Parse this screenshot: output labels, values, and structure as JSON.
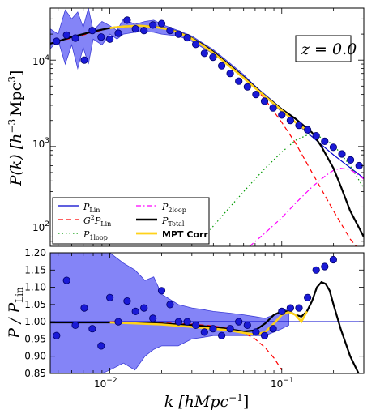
{
  "chart_data": [
    {
      "type": "line",
      "panel": "top",
      "xscale": "log",
      "yscale": "log",
      "xlim": [
        0.0045,
        0.3
      ],
      "ylim": [
        70,
        40000
      ],
      "ylabel": "P(k) [h^-3 Mpc^3]",
      "y_ticks": [
        {
          "v": 100,
          "label": "10^2"
        },
        {
          "v": 1000,
          "label": "10^3"
        },
        {
          "v": 10000,
          "label": "10^4"
        }
      ],
      "annotation": "z = 0.0",
      "legend_position": "lower-left",
      "series": [
        {
          "name": "P_Lin",
          "color": "#0000cc",
          "style": "solid",
          "x": [
            0.0045,
            0.006,
            0.008,
            0.01,
            0.012,
            0.015,
            0.018,
            0.022,
            0.026,
            0.03,
            0.035,
            0.04,
            0.05,
            0.06,
            0.07,
            0.08,
            0.1,
            0.12,
            0.15,
            0.2,
            0.3
          ],
          "y": [
            15500,
            18500,
            21500,
            23500,
            24500,
            25000,
            24500,
            23000,
            20500,
            18000,
            15000,
            12500,
            8800,
            6500,
            5000,
            3900,
            2600,
            1900,
            1300,
            800,
            430
          ]
        },
        {
          "name": "G^2 P_Lin",
          "color": "#ff0000",
          "style": "dashed",
          "x": [
            0.0045,
            0.01,
            0.015,
            0.02,
            0.03,
            0.04,
            0.05,
            0.06,
            0.07,
            0.08,
            0.1,
            0.12,
            0.15,
            0.2,
            0.25,
            0.3
          ],
          "y": [
            15500,
            23500,
            25000,
            24000,
            18000,
            12500,
            8700,
            6400,
            4800,
            3500,
            1900,
            1100,
            500,
            180,
            85,
            55
          ]
        },
        {
          "name": "P_1loop",
          "color": "#009900",
          "style": "dotted",
          "x": [
            0.034,
            0.04,
            0.05,
            0.06,
            0.07,
            0.08,
            0.1,
            0.12,
            0.14,
            0.16,
            0.2,
            0.25,
            0.3
          ],
          "y": [
            80,
            120,
            200,
            300,
            420,
            560,
            860,
            1180,
            1350,
            1350,
            1050,
            600,
            330
          ]
        },
        {
          "name": "P_2loop",
          "color": "#ff00ff",
          "style": "dashdot",
          "x": [
            0.065,
            0.08,
            0.1,
            0.12,
            0.15,
            0.18,
            0.2,
            0.22,
            0.25,
            0.28,
            0.3
          ],
          "y": [
            70,
            100,
            150,
            220,
            340,
            460,
            530,
            560,
            540,
            470,
            420
          ]
        },
        {
          "name": "P_Total",
          "color": "#000000",
          "style": "solid",
          "x": [
            0.0045,
            0.006,
            0.008,
            0.01,
            0.012,
            0.015,
            0.018,
            0.022,
            0.026,
            0.03,
            0.035,
            0.04,
            0.05,
            0.06,
            0.07,
            0.08,
            0.1,
            0.12,
            0.15,
            0.17,
            0.2,
            0.22,
            0.25,
            0.3
          ],
          "y": [
            15500,
            18500,
            21500,
            23500,
            24500,
            25000,
            24500,
            23000,
            20500,
            18000,
            15000,
            12500,
            8700,
            6350,
            4850,
            3850,
            2700,
            2100,
            1450,
            1000,
            560,
            350,
            180,
            90
          ]
        },
        {
          "name": "MPT Corr",
          "color": "#ffd21a",
          "style": "solid",
          "x": [
            0.01,
            0.012,
            0.015,
            0.018,
            0.022,
            0.026,
            0.03,
            0.035,
            0.04,
            0.05,
            0.06,
            0.07,
            0.08,
            0.1,
            0.12,
            0.14
          ],
          "y": [
            23500,
            24500,
            25000,
            24300,
            22700,
            20200,
            17700,
            14600,
            12100,
            8400,
            6200,
            4750,
            3800,
            2620,
            1910,
            1530
          ]
        },
        {
          "name": "simulation",
          "color": "#0000cc",
          "style": "markers",
          "x": [
            0.0049,
            0.0056,
            0.0063,
            0.0071,
            0.0079,
            0.0089,
            0.01,
            0.0112,
            0.0126,
            0.0141,
            0.0158,
            0.0178,
            0.02,
            0.0224,
            0.0251,
            0.0282,
            0.0316,
            0.0355,
            0.0398,
            0.0447,
            0.0501,
            0.0562,
            0.0631,
            0.0708,
            0.0794,
            0.0891,
            0.1,
            0.1122,
            0.1259,
            0.1413,
            0.1585,
            0.1778,
            0.1995,
            0.2239,
            0.2512,
            0.2818
          ],
          "y": [
            16500,
            19500,
            18000,
            10000,
            22000,
            18500,
            17500,
            20500,
            29000,
            23000,
            22000,
            25500,
            26500,
            22000,
            20000,
            18200,
            15200,
            12000,
            10800,
            8600,
            7000,
            5700,
            4900,
            4000,
            3350,
            2800,
            2320,
            2000,
            1760,
            1560,
            1330,
            1150,
            980,
            820,
            700,
            600
          ]
        }
      ],
      "band": {
        "name": "simulation scatter",
        "color": "#6f6ff6",
        "x": [
          0.0045,
          0.005,
          0.0055,
          0.006,
          0.0065,
          0.007,
          0.0075,
          0.008,
          0.009,
          0.01,
          0.011,
          0.012,
          0.014,
          0.016,
          0.018,
          0.02,
          0.025,
          0.03,
          0.04,
          0.05,
          0.06,
          0.07,
          0.08,
          0.1
        ],
        "upper": [
          23000,
          20000,
          38000,
          30000,
          36000,
          24000,
          40000,
          22000,
          28000,
          25000,
          22000,
          30000,
          26000,
          28000,
          29000,
          26000,
          22000,
          19000,
          13200,
          9200,
          6800,
          5000,
          4000,
          2750
        ],
        "lower": [
          13500,
          17000,
          9000,
          15000,
          8000,
          14000,
          9000,
          17500,
          15000,
          20000,
          17500,
          20000,
          21000,
          21500,
          21000,
          20000,
          19000,
          16500,
          11800,
          8300,
          6200,
          4700,
          3750,
          2500
        ]
      }
    },
    {
      "type": "line",
      "panel": "bottom",
      "xscale": "log",
      "xlim": [
        0.0045,
        0.3
      ],
      "ylim": [
        0.85,
        1.2
      ],
      "xlabel": "k [h Mpc^-1]",
      "ylabel": "P / P_Lin",
      "x_ticks": [
        {
          "v": 0.01,
          "label": "10^-2"
        },
        {
          "v": 0.1,
          "label": "10^-1"
        }
      ],
      "y_ticks": [
        "0.85",
        "0.90",
        "0.95",
        "1.00",
        "1.05",
        "1.10",
        "1.15",
        "1.20"
      ],
      "series": [
        {
          "name": "P_Lin",
          "color": "#0000cc",
          "style": "solid",
          "x": [
            0.0045,
            0.3
          ],
          "y": [
            1.0,
            1.0
          ]
        },
        {
          "name": "G^2 P_Lin",
          "color": "#ff0000",
          "style": "dashed",
          "x": [
            0.01,
            0.02,
            0.03,
            0.04,
            0.05,
            0.06,
            0.07,
            0.08,
            0.09,
            0.1
          ],
          "y": [
            1.0,
            0.997,
            0.993,
            0.988,
            0.98,
            0.968,
            0.95,
            0.925,
            0.895,
            0.86
          ]
        },
        {
          "name": "P_Total",
          "color": "#000000",
          "style": "solid",
          "x": [
            0.0045,
            0.01,
            0.02,
            0.03,
            0.04,
            0.05,
            0.06,
            0.07,
            0.08,
            0.09,
            0.1,
            0.11,
            0.12,
            0.13,
            0.14,
            0.15,
            0.16,
            0.17,
            0.18,
            0.19,
            0.2,
            0.22,
            0.25,
            0.28
          ],
          "y": [
            0.998,
            0.998,
            0.995,
            0.99,
            0.985,
            0.978,
            0.972,
            0.975,
            0.995,
            1.02,
            1.03,
            1.03,
            1.02,
            1.015,
            1.03,
            1.06,
            1.1,
            1.115,
            1.11,
            1.09,
            1.05,
            0.98,
            0.9,
            0.85
          ]
        },
        {
          "name": "MPT Corr",
          "color": "#ffd21a",
          "style": "solid",
          "x": [
            0.01,
            0.02,
            0.03,
            0.04,
            0.05,
            0.06,
            0.07,
            0.08,
            0.09,
            0.1,
            0.11,
            0.12,
            0.13,
            0.14
          ],
          "y": [
            0.998,
            0.992,
            0.985,
            0.98,
            0.975,
            0.968,
            0.963,
            0.97,
            0.995,
            1.02,
            1.028,
            1.02,
            1.0,
            1.03
          ]
        },
        {
          "name": "simulation",
          "color": "#0000cc",
          "style": "markers",
          "x": [
            0.0049,
            0.0056,
            0.0063,
            0.0071,
            0.0079,
            0.0089,
            0.01,
            0.0112,
            0.0126,
            0.0141,
            0.0158,
            0.0178,
            0.02,
            0.0224,
            0.0251,
            0.0282,
            0.0316,
            0.0355,
            0.0398,
            0.0447,
            0.0501,
            0.0562,
            0.0631,
            0.0708,
            0.0794,
            0.0891,
            0.1,
            0.1122,
            0.1259,
            0.1413,
            0.1585,
            0.1778,
            0.1995
          ],
          "y": [
            0.96,
            1.12,
            0.99,
            1.04,
            0.98,
            0.93,
            1.07,
            1.0,
            1.06,
            1.03,
            1.04,
            1.01,
            1.09,
            1.05,
            1.0,
            1.0,
            0.99,
            0.97,
            0.98,
            0.96,
            0.98,
            1.0,
            0.99,
            0.97,
            0.96,
            0.98,
            1.03,
            1.04,
            1.04,
            1.07,
            1.15,
            1.16,
            1.18
          ]
        }
      ],
      "band": {
        "name": "simulation scatter",
        "color": "#6f6ff6",
        "x": [
          0.0045,
          0.005,
          0.0055,
          0.006,
          0.007,
          0.008,
          0.009,
          0.01,
          0.012,
          0.014,
          0.016,
          0.018,
          0.02,
          0.025,
          0.03,
          0.035,
          0.04,
          0.05,
          0.06,
          0.07,
          0.08,
          0.09,
          0.1,
          0.11
        ],
        "upper": [
          1.2,
          1.2,
          1.2,
          1.2,
          1.2,
          1.2,
          1.2,
          1.2,
          1.17,
          1.15,
          1.12,
          1.13,
          1.08,
          1.05,
          1.04,
          1.035,
          1.03,
          1.025,
          1.02,
          1.015,
          1.01,
          1.02,
          1.03,
          1.04
        ],
        "lower": [
          0.85,
          0.85,
          0.85,
          0.85,
          0.85,
          0.85,
          0.85,
          0.86,
          0.88,
          0.86,
          0.9,
          0.92,
          0.93,
          0.93,
          0.95,
          0.955,
          0.96,
          0.96,
          0.96,
          0.96,
          0.96,
          0.97,
          0.98,
          0.99
        ]
      }
    }
  ],
  "legend": {
    "entries": [
      {
        "label": "P_Lin",
        "color": "#0000cc",
        "style": "solid",
        "col": 0,
        "row": 0
      },
      {
        "label": "G^2 P_Lin",
        "color": "#ff0000",
        "style": "dashed",
        "col": 0,
        "row": 1
      },
      {
        "label": "P_1loop",
        "color": "#009900",
        "style": "dotted",
        "col": 0,
        "row": 2
      },
      {
        "label": "P_2loop",
        "color": "#ff00ff",
        "style": "dashdot",
        "col": 1,
        "row": 0
      },
      {
        "label": "P_Total",
        "color": "#000000",
        "style": "solid",
        "col": 1,
        "row": 1
      },
      {
        "label": "MPT Corr",
        "color": "#ffd21a",
        "style": "solid",
        "col": 1,
        "row": 2
      }
    ]
  },
  "text": {
    "top_ylabel_main": "P(k) [h",
    "top_ylabel_sup": "−3",
    "top_ylabel_tail": "Mpc",
    "top_ylabel_sup2": "3",
    "top_ylabel_end": "]",
    "bottom_ylabel": "P / P",
    "bottom_ylabel_sub": "Lin",
    "xlabel_main": "k [hMpc",
    "xlabel_sup": "−1",
    "xlabel_end": "]",
    "z_label": "z = 0.0",
    "tick_10": "10",
    "sup_m2": "−2",
    "sup_m1": "−1",
    "sup_2": "2",
    "sup_3": "3",
    "sup_4": "4",
    "leg_plin": "P",
    "leg_plin_sub": "Lin",
    "leg_g2": "G",
    "leg_g2_sup": "2",
    "leg_g2_p": "P",
    "leg_g2_sub": "Lin",
    "leg_p1": "P",
    "leg_p1_sub": "1loop",
    "leg_p2": "P",
    "leg_p2_sub": "2loop",
    "leg_pt": "P",
    "leg_pt_sub": "Total",
    "leg_mpt": "MPT Corr"
  }
}
